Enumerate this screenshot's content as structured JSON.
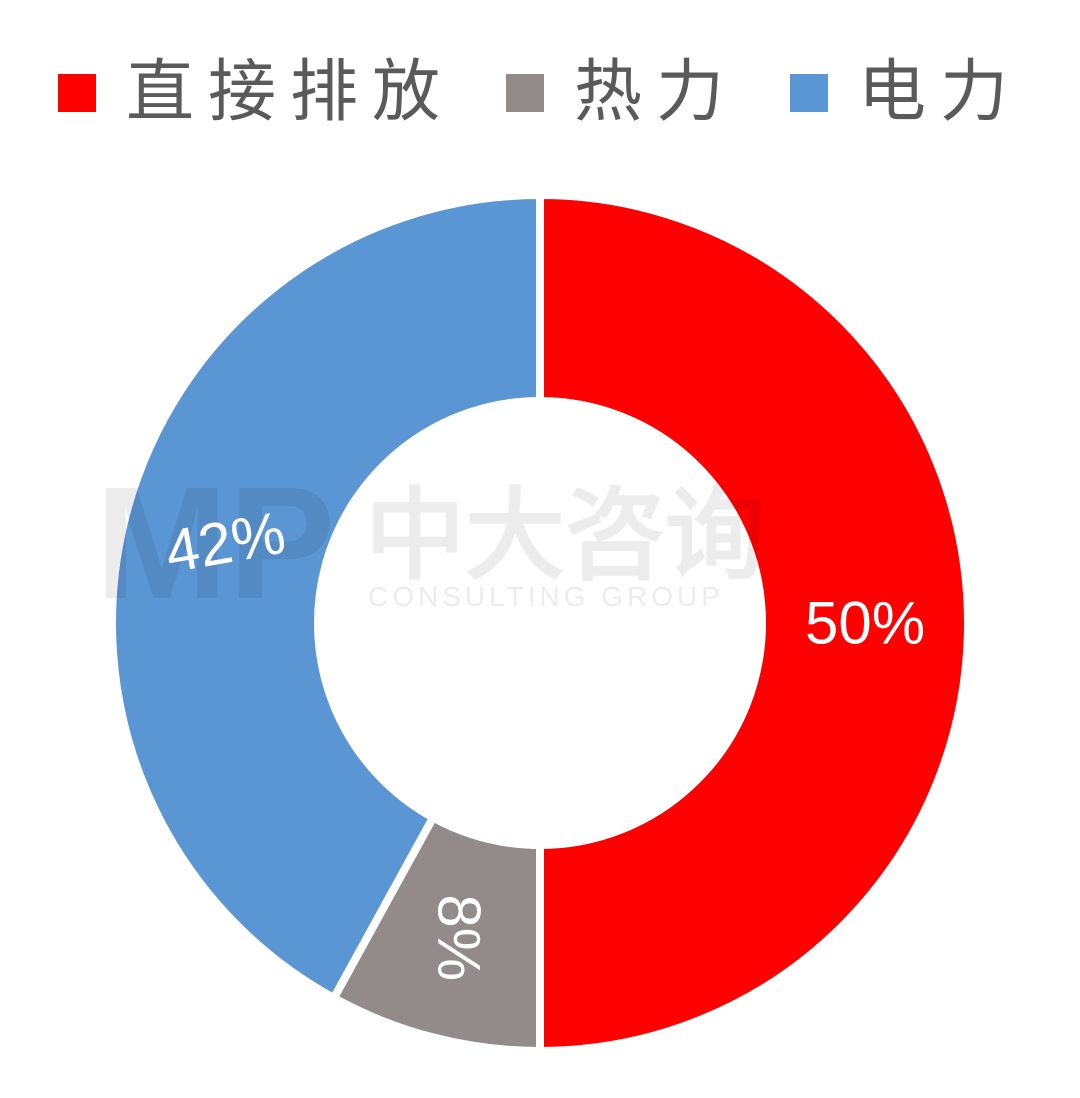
{
  "chart_data": {
    "type": "pie",
    "variant": "donut",
    "categories": [
      "直接排放",
      "热力",
      "电力"
    ],
    "values": [
      50,
      8,
      42
    ],
    "data_labels": [
      "50%",
      "8%",
      "42%"
    ],
    "colors": [
      "#ff0000",
      "#938a8a",
      "#5b96d4"
    ],
    "legend": "top",
    "start_angle_deg": 0,
    "direction": "clockwise"
  },
  "watermark": {
    "logo": "MP",
    "name": "中大咨询",
    "subtitle": "CONSULTING GROUP"
  }
}
